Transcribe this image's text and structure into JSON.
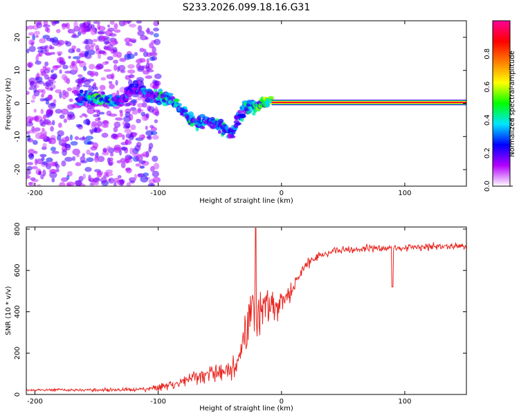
{
  "title": "S233.2026.099.18.16.G31",
  "colorbar": {
    "label": "Normalized spectral amplitude",
    "ticks": [
      0.0,
      0.2,
      0.4,
      0.6,
      0.8
    ],
    "tick_labels": [
      "0.0",
      "0.2",
      "0.4",
      "0.6",
      "0.8"
    ],
    "range": [
      0.0,
      1.0
    ],
    "colors": [
      "#ffffff",
      "#b400ff",
      "#0000ff",
      "#00e5ff",
      "#00ff00",
      "#ffff00",
      "#ff7f00",
      "#ff0000",
      "#ff0099"
    ]
  },
  "chart_data": [
    {
      "type": "heatmap",
      "title": "S233.2026.099.18.16.G31",
      "xlabel": "Height of straight line (km)",
      "ylabel": "Frequency (Hz)",
      "xlim": [
        -207,
        150
      ],
      "ylim": [
        -25,
        25
      ],
      "xticks": [
        -200,
        -100,
        0,
        100
      ],
      "xtick_labels": [
        "-200",
        "-100",
        "0",
        "100"
      ],
      "yticks": [
        -20,
        -10,
        0,
        10,
        20
      ],
      "ytick_labels": [
        "-20",
        "-10",
        "0",
        "10",
        "20"
      ],
      "ridge": {
        "x": [
          -165,
          -150,
          -140,
          -130,
          -120,
          -110,
          -100,
          -90,
          -80,
          -70,
          -60,
          -50,
          -40,
          -35,
          -30,
          -25,
          -20,
          -15,
          -10,
          -5,
          0,
          10,
          20,
          40,
          60,
          85,
          100,
          120,
          150
        ],
        "y": [
          2,
          1.5,
          1,
          0.5,
          5,
          3,
          2,
          1,
          -2,
          -6,
          -5,
          -7,
          -9,
          -5,
          -1,
          -1,
          -1,
          0,
          1,
          2,
          1,
          0.5,
          0.3,
          0.3,
          0.3,
          0.5,
          0.3,
          0.3,
          0.3
        ],
        "amplitude": [
          0.35,
          0.5,
          0.45,
          0.3,
          0.3,
          0.35,
          0.4,
          0.45,
          0.4,
          0.45,
          0.35,
          0.4,
          0.35,
          0.3,
          0.45,
          0.5,
          0.55,
          0.55,
          0.6,
          0.55,
          0.8,
          0.95,
          0.95,
          0.95,
          0.95,
          0.95,
          0.95,
          0.95,
          0.95
        ]
      },
      "noise_region_x": [
        -207,
        -100
      ]
    },
    {
      "type": "line",
      "xlabel": "Height of straight line (km)",
      "ylabel": "SNR (10 * v/v)",
      "xlim": [
        -207,
        150
      ],
      "ylim": [
        0,
        810
      ],
      "xticks": [
        -200,
        -100,
        0,
        100
      ],
      "xtick_labels": [
        "-200",
        "-100",
        "0",
        "100"
      ],
      "yticks": [
        0,
        200,
        400,
        600,
        800
      ],
      "ytick_labels": [
        "0",
        "200",
        "400",
        "600",
        "800"
      ],
      "color": "#e8251f",
      "envelope": {
        "x": [
          -207,
          -150,
          -110,
          -95,
          -80,
          -70,
          -60,
          -50,
          -40,
          -35,
          -30,
          -25,
          -20,
          -15,
          -10,
          -5,
          0,
          5,
          10,
          15,
          20,
          25,
          30,
          40,
          50,
          70,
          100,
          120,
          150
        ],
        "y": [
          22,
          22,
          25,
          40,
          60,
          85,
          100,
          110,
          120,
          180,
          300,
          350,
          380,
          420,
          430,
          440,
          450,
          480,
          520,
          580,
          620,
          650,
          665,
          690,
          700,
          705,
          710,
          715,
          718
        ],
        "noise": [
          8,
          10,
          12,
          25,
          35,
          45,
          50,
          55,
          60,
          90,
          150,
          200,
          180,
          150,
          150,
          120,
          90,
          70,
          50,
          35,
          30,
          30,
          28,
          25,
          25,
          22,
          22,
          22,
          22
        ]
      },
      "features": [
        {
          "x": -21,
          "y": 805
        },
        {
          "x": 90,
          "y": 520
        }
      ]
    }
  ]
}
